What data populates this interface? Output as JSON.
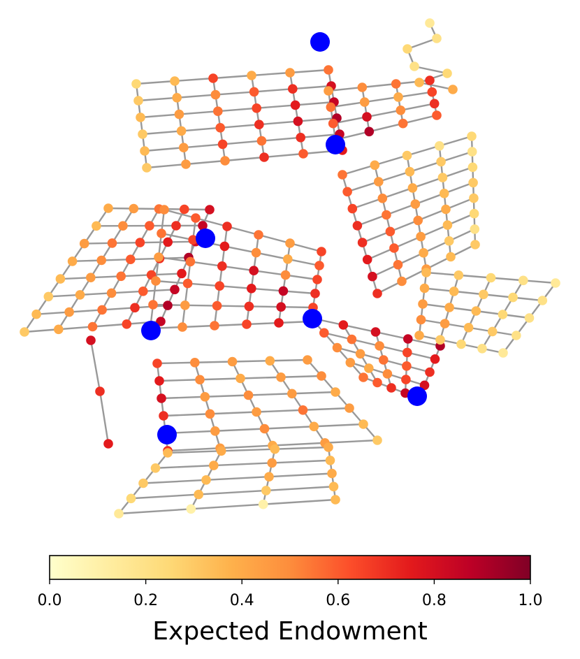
{
  "colorbar": {
    "label": "Expected Endowment",
    "ticks": [
      "0.0",
      "0.2",
      "0.4",
      "0.6",
      "0.8",
      "1.0"
    ],
    "colormap": "YlOrRd",
    "range": [
      0.0,
      1.0
    ]
  },
  "network": {
    "edge_color": "#999999",
    "highlight_node_color": "#0000ff",
    "colormap_stops": [
      "#ffffcc",
      "#ffeda0",
      "#fed976",
      "#feb24c",
      "#fd8d3c",
      "#fc4e2a",
      "#e31a1c",
      "#bd0026",
      "#800026"
    ]
  }
}
